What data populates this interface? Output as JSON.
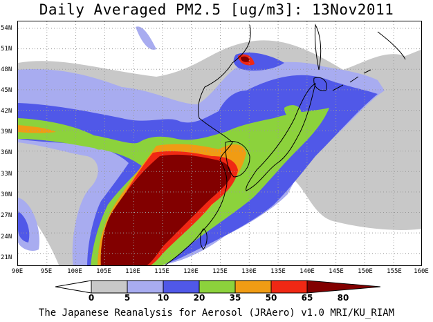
{
  "title": "Daily Averaged PM2.5 [ug/m3]: 13Nov2011",
  "footer": "The Japanese Reanalysis for Aerosol (JRAero) v1.0 MRI/KU_RIAM",
  "colors": {
    "c0_5": "#ffffff",
    "c5_10": "#c8c8c8",
    "c10_20": "#a8acf0",
    "c20_35": "#5058e8",
    "c35_50": "#8cd23c",
    "c50_65": "#f09c14",
    "c65_80": "#f02814",
    "c80_up": "#820000",
    "grid": "#999999",
    "coast": "#000000"
  },
  "axes": {
    "lat_labels": [
      "54N",
      "51N",
      "48N",
      "45N",
      "42N",
      "39N",
      "36N",
      "33N",
      "30N",
      "27N",
      "24N",
      "21N"
    ],
    "lon_labels": [
      "90E",
      "95E",
      "100E",
      "105E",
      "110E",
      "115E",
      "120E",
      "125E",
      "130E",
      "135E",
      "140E",
      "145E",
      "150E",
      "155E",
      "160E"
    ]
  },
  "colorbar": {
    "levels": [
      "0",
      "5",
      "10",
      "20",
      "35",
      "50",
      "65",
      "80"
    ]
  },
  "chart_data": {
    "type": "heatmap",
    "title": "Daily Averaged PM2.5 [ug/m3]: 13Nov2011",
    "lon_range": [
      90,
      160
    ],
    "lat_range": [
      20,
      55
    ],
    "contour_levels": [
      0,
      5,
      10,
      20,
      35,
      50,
      65,
      80
    ]
  }
}
